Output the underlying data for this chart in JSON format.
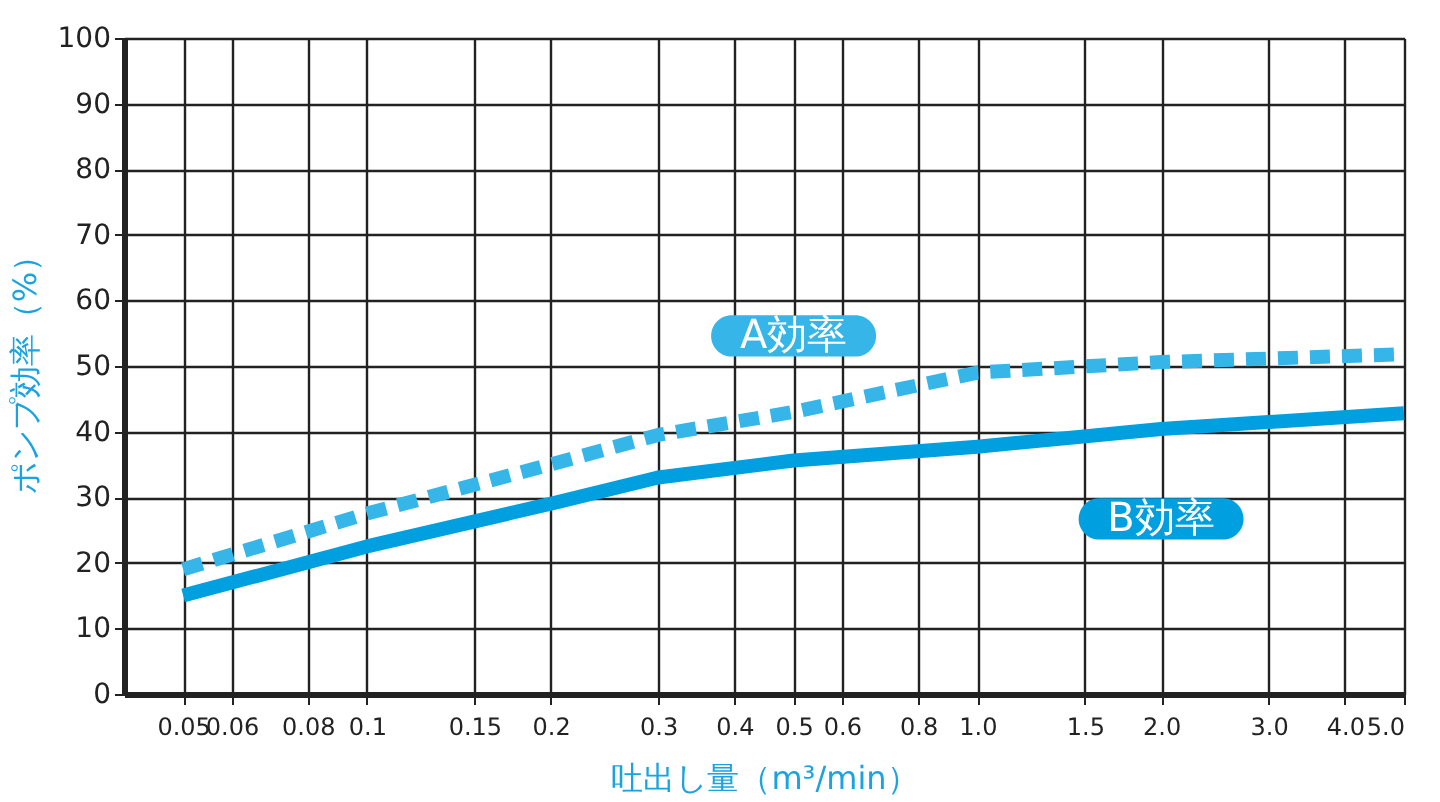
{
  "chart_data": {
    "type": "line",
    "xlabel": "吐出し量（m³/min）",
    "ylabel": "ポンプ効率（%）",
    "x": [
      0.05,
      0.1,
      0.2,
      0.3,
      0.5,
      1.0,
      2.0,
      5.0
    ],
    "series": [
      {
        "name": "A効率",
        "color": "#35b5e8",
        "line_style": "dashed",
        "values": [
          19,
          27.5,
          35,
          39.5,
          43,
          49,
          50.6,
          51.8
        ]
      },
      {
        "name": "B効率",
        "color": "#00a0e0",
        "line_style": "solid",
        "values": [
          15,
          22.5,
          29,
          33,
          35.6,
          37.7,
          40.4,
          42.8
        ]
      }
    ],
    "log": "x",
    "xlim": [
      0.04,
      5.0
    ],
    "xticks": [
      0.05,
      0.06,
      0.08,
      0.1,
      0.15,
      0.2,
      0.3,
      0.4,
      0.5,
      0.6,
      0.8,
      {
        "value": 1.0,
        "label": "1.0"
      },
      1.5,
      {
        "value": 2.0,
        "label": "2.0"
      },
      {
        "value": 3.0,
        "label": "3.0"
      },
      {
        "value": 4.0,
        "label": "4.0"
      },
      {
        "value": 5.0,
        "label": "5.0"
      }
    ],
    "ylim": [
      0,
      100
    ],
    "yticks": [
      0,
      10,
      20,
      30,
      40,
      50,
      60,
      70,
      80,
      90,
      100
    ],
    "grid": true,
    "marker": "none"
  }
}
